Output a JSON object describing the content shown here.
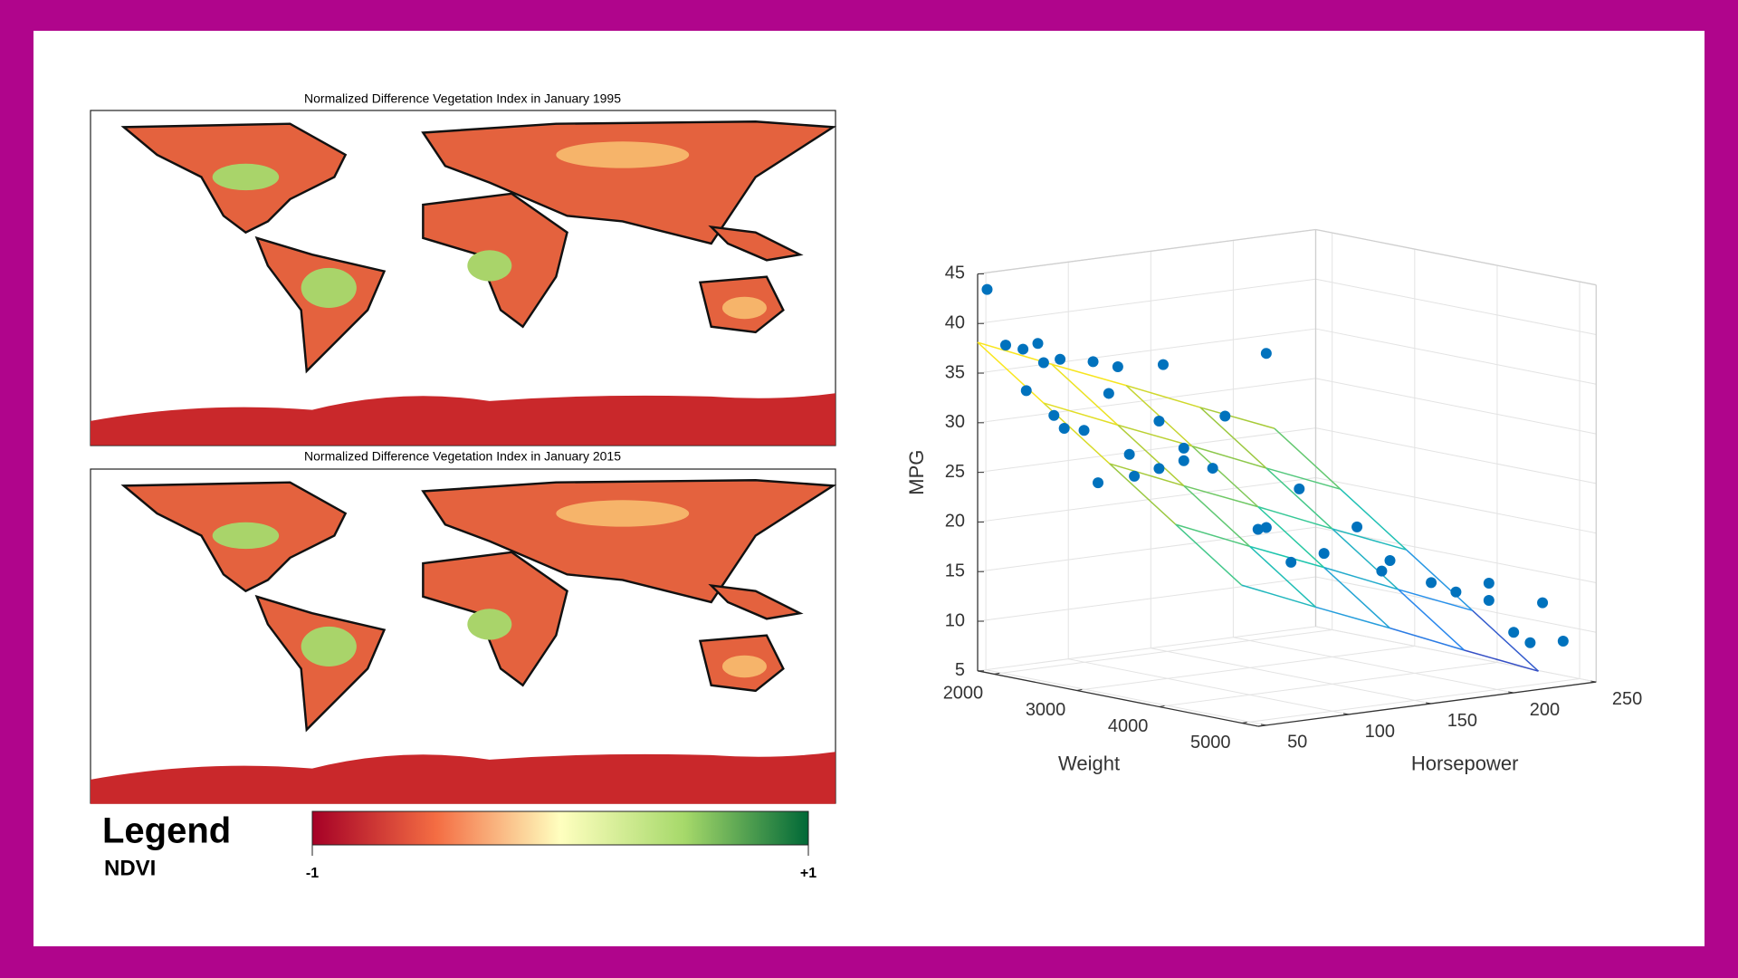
{
  "maps": [
    {
      "title": "Normalized Difference Vegetation Index in January 1995"
    },
    {
      "title": "Normalized Difference Vegetation Index in January 2015"
    }
  ],
  "legend": {
    "title": "Legend",
    "subtitle": "NDVI",
    "min_label": "-1",
    "max_label": "+1"
  },
  "chart_data": {
    "type": "scatter3d",
    "xlabel": "Weight",
    "ylabel": "Horsepower",
    "zlabel": "MPG",
    "xlim": [
      1800,
      5200
    ],
    "xticks": [
      2000,
      3000,
      4000,
      5000
    ],
    "ylim": [
      45,
      250
    ],
    "yticks": [
      50,
      100,
      150,
      200,
      250
    ],
    "zlim": [
      5,
      45
    ],
    "zticks": [
      5,
      10,
      15,
      20,
      25,
      30,
      35,
      40,
      45
    ],
    "grid": true,
    "color": "#0072bd",
    "x": [
      1835,
      1950,
      2000,
      2050,
      2100,
      2130,
      2200,
      2230,
      2265,
      2300,
      2350,
      2400,
      2450,
      2500,
      2600,
      2700,
      2750,
      2800,
      2900,
      3000,
      3100,
      3150,
      3200,
      3300,
      3400,
      3500,
      3600,
      3700,
      3900,
      4000,
      4100,
      4300,
      4400,
      4500,
      4600,
      4700,
      4800,
      4900,
      4950,
      5000
    ],
    "y": [
      49,
      67,
      52,
      60,
      70,
      65,
      75,
      88,
      68,
      90,
      70,
      88,
      92,
      95,
      97,
      95,
      110,
      105,
      100,
      110,
      105,
      120,
      150,
      120,
      140,
      130,
      150,
      140,
      150,
      165,
      175,
      170,
      190,
      200,
      215,
      210,
      220,
      225,
      230,
      240
    ],
    "z": [
      43.4,
      33,
      38,
      37.5,
      36,
      38.1,
      36.4,
      29,
      31,
      36,
      29.8,
      24,
      33,
      35.7,
      27,
      25,
      36,
      30.5,
      26,
      28,
      27,
      26,
      37,
      31.5,
      20,
      20.2,
      24,
      17,
      18,
      20.5,
      16,
      17.5,
      15,
      14,
      13,
      15,
      10,
      9,
      13,
      9
    ],
    "surface": {
      "x": [
        1800,
        2600,
        3400,
        4200,
        5000
      ],
      "y": [
        45,
        90,
        135,
        180,
        225
      ],
      "z": [
        [
          38.1,
          34.9,
          31.8,
          28.6,
          25.5
        ],
        [
          33.3,
          30.1,
          27.0,
          23.8,
          20.7
        ],
        [
          28.5,
          25.3,
          22.2,
          19.0,
          15.9
        ],
        [
          23.7,
          20.5,
          17.4,
          14.2,
          11.1
        ],
        [
          18.9,
          15.7,
          12.6,
          9.4,
          6.3
        ]
      ]
    }
  }
}
